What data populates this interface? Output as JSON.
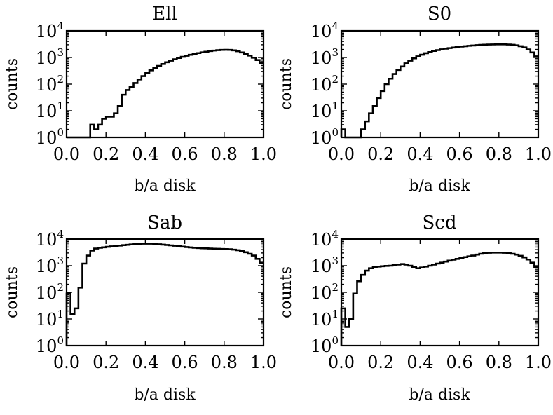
{
  "chart_data": [
    {
      "type": "histogram",
      "title": "Ell",
      "xlabel": "b/a disk",
      "ylabel": "counts",
      "xlim": [
        0.0,
        1.0
      ],
      "ylim": [
        1,
        10000
      ],
      "yscale": "log",
      "xticks": [
        "0.0",
        "0.2",
        "0.4",
        "0.6",
        "0.8",
        "1.0"
      ],
      "yticks": [
        {
          "base": "10",
          "exp": "0"
        },
        {
          "base": "10",
          "exp": "1"
        },
        {
          "base": "10",
          "exp": "2"
        },
        {
          "base": "10",
          "exp": "3"
        },
        {
          "base": "10",
          "exp": "4"
        }
      ],
      "bin_width": 0.02,
      "bins_start": [
        0.0,
        0.02,
        0.04,
        0.06,
        0.08,
        0.1,
        0.12,
        0.14,
        0.16,
        0.18,
        0.2,
        0.22,
        0.24,
        0.26,
        0.28,
        0.3,
        0.32,
        0.34,
        0.36,
        0.38,
        0.4,
        0.42,
        0.44,
        0.46,
        0.48,
        0.5,
        0.52,
        0.54,
        0.56,
        0.58,
        0.6,
        0.62,
        0.64,
        0.66,
        0.68,
        0.7,
        0.72,
        0.74,
        0.76,
        0.78,
        0.8,
        0.82,
        0.84,
        0.86,
        0.88,
        0.9,
        0.92,
        0.94,
        0.96,
        0.98
      ],
      "counts": [
        0,
        0,
        0,
        0,
        0,
        0,
        3,
        2,
        3,
        5,
        6,
        6,
        8,
        15,
        40,
        60,
        80,
        110,
        150,
        200,
        260,
        330,
        400,
        480,
        570,
        660,
        760,
        860,
        960,
        1060,
        1160,
        1260,
        1360,
        1460,
        1560,
        1650,
        1740,
        1820,
        1880,
        1920,
        1940,
        1920,
        1850,
        1720,
        1550,
        1370,
        1180,
        980,
        800,
        620
      ]
    },
    {
      "type": "histogram",
      "title": "S0",
      "xlabel": "b/a disk",
      "ylabel": "counts",
      "xlim": [
        0.0,
        1.0
      ],
      "ylim": [
        1,
        10000
      ],
      "yscale": "log",
      "xticks": [
        "0.0",
        "0.2",
        "0.4",
        "0.6",
        "0.8",
        "1.0"
      ],
      "yticks": [
        {
          "base": "10",
          "exp": "0"
        },
        {
          "base": "10",
          "exp": "1"
        },
        {
          "base": "10",
          "exp": "2"
        },
        {
          "base": "10",
          "exp": "3"
        },
        {
          "base": "10",
          "exp": "4"
        }
      ],
      "bin_width": 0.02,
      "bins_start": [
        0.0,
        0.02,
        0.04,
        0.06,
        0.08,
        0.1,
        0.12,
        0.14,
        0.16,
        0.18,
        0.2,
        0.22,
        0.24,
        0.26,
        0.28,
        0.3,
        0.32,
        0.34,
        0.36,
        0.38,
        0.4,
        0.42,
        0.44,
        0.46,
        0.48,
        0.5,
        0.52,
        0.54,
        0.56,
        0.58,
        0.6,
        0.62,
        0.64,
        0.66,
        0.68,
        0.7,
        0.72,
        0.74,
        0.76,
        0.78,
        0.8,
        0.82,
        0.84,
        0.86,
        0.88,
        0.9,
        0.92,
        0.94,
        0.96,
        0.98
      ],
      "counts": [
        2,
        0,
        0,
        0,
        1,
        2,
        4,
        8,
        15,
        30,
        55,
        100,
        160,
        240,
        340,
        460,
        600,
        760,
        930,
        1100,
        1270,
        1440,
        1600,
        1750,
        1890,
        2020,
        2140,
        2250,
        2360,
        2460,
        2560,
        2650,
        2740,
        2820,
        2900,
        2960,
        3010,
        3050,
        3080,
        3100,
        3110,
        3100,
        3060,
        2980,
        2850,
        2650,
        2380,
        2000,
        1550,
        1100
      ]
    },
    {
      "type": "histogram",
      "title": "Sab",
      "xlabel": "b/a disk",
      "ylabel": "counts",
      "xlim": [
        0.0,
        1.0
      ],
      "ylim": [
        1,
        10000
      ],
      "yscale": "log",
      "xticks": [
        "0.0",
        "0.2",
        "0.4",
        "0.6",
        "0.8",
        "1.0"
      ],
      "yticks": [
        {
          "base": "10",
          "exp": "0"
        },
        {
          "base": "10",
          "exp": "1"
        },
        {
          "base": "10",
          "exp": "2"
        },
        {
          "base": "10",
          "exp": "3"
        },
        {
          "base": "10",
          "exp": "4"
        }
      ],
      "bin_width": 0.02,
      "bins_start": [
        0.0,
        0.02,
        0.04,
        0.06,
        0.08,
        0.1,
        0.12,
        0.14,
        0.16,
        0.18,
        0.2,
        0.22,
        0.24,
        0.26,
        0.28,
        0.3,
        0.32,
        0.34,
        0.36,
        0.38,
        0.4,
        0.42,
        0.44,
        0.46,
        0.48,
        0.5,
        0.52,
        0.54,
        0.56,
        0.58,
        0.6,
        0.62,
        0.64,
        0.66,
        0.68,
        0.7,
        0.72,
        0.74,
        0.76,
        0.78,
        0.8,
        0.82,
        0.84,
        0.86,
        0.88,
        0.9,
        0.92,
        0.94,
        0.96,
        0.98
      ],
      "counts": [
        90,
        15,
        25,
        150,
        1200,
        2400,
        3700,
        4400,
        4700,
        4900,
        5100,
        5300,
        5500,
        5700,
        5900,
        6100,
        6300,
        6500,
        6600,
        6700,
        6700,
        6700,
        6600,
        6400,
        6200,
        6000,
        5800,
        5600,
        5400,
        5200,
        5000,
        4850,
        4700,
        4600,
        4500,
        4450,
        4400,
        4350,
        4300,
        4250,
        4200,
        4150,
        4000,
        3800,
        3500,
        3200,
        2800,
        2400,
        1800,
        1300
      ]
    },
    {
      "type": "histogram",
      "title": "Scd",
      "xlabel": "b/a disk",
      "ylabel": "counts",
      "xlim": [
        0.0,
        1.0
      ],
      "ylim": [
        1,
        10000
      ],
      "yscale": "log",
      "xticks": [
        "0.0",
        "0.2",
        "0.4",
        "0.6",
        "0.8",
        "1.0"
      ],
      "yticks": [
        {
          "base": "10",
          "exp": "0"
        },
        {
          "base": "10",
          "exp": "1"
        },
        {
          "base": "10",
          "exp": "2"
        },
        {
          "base": "10",
          "exp": "3"
        },
        {
          "base": "10",
          "exp": "4"
        }
      ],
      "bin_width": 0.02,
      "bins_start": [
        0.0,
        0.02,
        0.04,
        0.06,
        0.08,
        0.1,
        0.12,
        0.14,
        0.16,
        0.18,
        0.2,
        0.22,
        0.24,
        0.26,
        0.28,
        0.3,
        0.32,
        0.34,
        0.36,
        0.38,
        0.4,
        0.42,
        0.44,
        0.46,
        0.48,
        0.5,
        0.52,
        0.54,
        0.56,
        0.58,
        0.6,
        0.62,
        0.64,
        0.66,
        0.68,
        0.7,
        0.72,
        0.74,
        0.76,
        0.78,
        0.8,
        0.82,
        0.84,
        0.86,
        0.88,
        0.9,
        0.92,
        0.94,
        0.96,
        0.98
      ],
      "counts": [
        25,
        5,
        10,
        90,
        260,
        450,
        650,
        800,
        880,
        920,
        950,
        980,
        1000,
        1050,
        1100,
        1150,
        1100,
        1000,
        870,
        800,
        850,
        920,
        1000,
        1100,
        1200,
        1300,
        1420,
        1550,
        1680,
        1800,
        1950,
        2100,
        2250,
        2400,
        2600,
        2800,
        2950,
        3050,
        3100,
        3100,
        3100,
        3050,
        2950,
        2800,
        2600,
        2350,
        2050,
        1700,
        1300,
        900
      ]
    }
  ]
}
